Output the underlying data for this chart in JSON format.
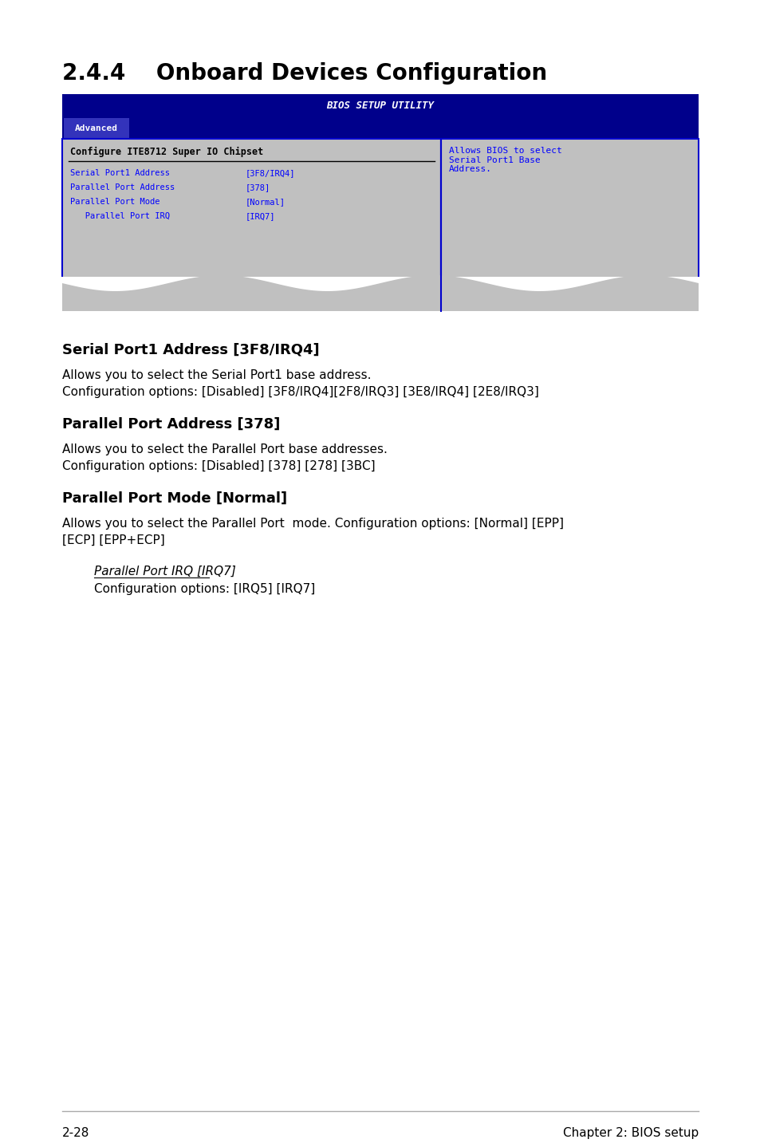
{
  "title_section": "2.4.4    Onboard Devices Configuration",
  "bios_header": "BIOS SETUP UTILITY",
  "bios_tab": "Advanced",
  "bios_subtitle": "Configure ITE8712 Super IO Chipset",
  "bios_items": [
    {
      "label": "Serial Port1 Address",
      "value": "[3F8/IRQ4]"
    },
    {
      "label": "Parallel Port Address",
      "value": "[378]"
    },
    {
      "label": "Parallel Port Mode",
      "value": "[Normal]"
    },
    {
      "label": "   Parallel Port IRQ",
      "value": "[IRQ7]"
    }
  ],
  "bios_help": "Allows BIOS to select\nSerial Port1 Base\nAddress.",
  "sections": [
    {
      "heading": "Serial Port1 Address [3F8/IRQ4]",
      "body": "Allows you to select the Serial Port1 base address.\nConfiguration options: [Disabled] [3F8/IRQ4][2F8/IRQ3] [3E8/IRQ4] [2E8/IRQ3]"
    },
    {
      "heading": "Parallel Port Address [378]",
      "body": "Allows you to select the Parallel Port base addresses.\nConfiguration options: [Disabled] [378] [278] [3BC]"
    },
    {
      "heading": "Parallel Port Mode [Normal]",
      "body": "Allows you to select the Parallel Port  mode. Configuration options: [Normal] [EPP]\n[ECP] [EPP+ECP]"
    }
  ],
  "sub_section_heading": "Parallel Port IRQ [IRQ7]",
  "sub_section_body": "Configuration options: [IRQ5] [IRQ7]",
  "footer_left": "2-28",
  "footer_right": "Chapter 2: BIOS setup",
  "bg_color": "#ffffff",
  "bios_dark_blue": "#00008B",
  "bios_mid_blue": "#0000CD",
  "bios_gray": "#C0C0C0",
  "bios_text_blue": "#0000FF",
  "bios_text_white": "#ffffff"
}
